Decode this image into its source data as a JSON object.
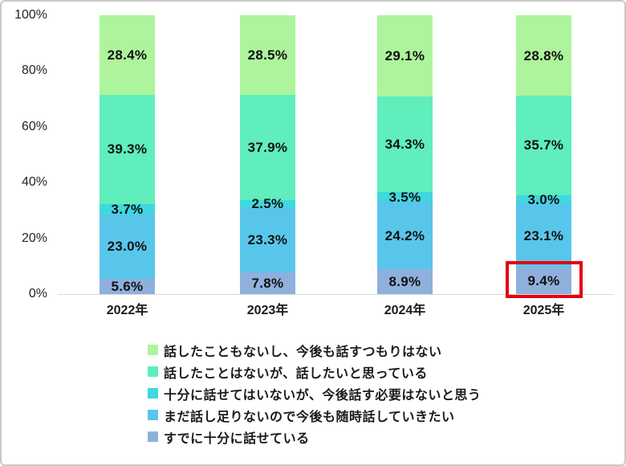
{
  "chart_data": {
    "type": "bar",
    "variant": "stacked-100-percent",
    "title": "",
    "xlabel": "",
    "ylabel": "",
    "categories": [
      "2022年",
      "2023年",
      "2024年",
      "2025年"
    ],
    "series": [
      {
        "name": "すでに十分に話せている",
        "color": "#8fb0dc",
        "values": [
          5.6,
          7.8,
          8.9,
          9.4
        ]
      },
      {
        "name": "まだ話し足りないので今後も随時話していきたい",
        "color": "#58c6eb",
        "values": [
          23.0,
          23.3,
          24.2,
          23.1
        ]
      },
      {
        "name": "十分に話せてはいないが、今後話す必要はないと思う",
        "color": "#3fd8de",
        "values": [
          3.7,
          2.5,
          3.5,
          3.0
        ]
      },
      {
        "name": "話したことはないが、話したいと思っている",
        "color": "#5feebc",
        "values": [
          39.3,
          37.9,
          34.3,
          35.7
        ]
      },
      {
        "name": "話したこともないし、今後も話すつもりはない",
        "color": "#adf49c",
        "values": [
          28.4,
          28.5,
          29.1,
          28.8
        ]
      }
    ],
    "y_ticks": [
      "0%",
      "20%",
      "40%",
      "60%",
      "80%",
      "100%"
    ],
    "ylim": [
      0,
      100
    ],
    "grid": false,
    "legend_position": "bottom",
    "legend_order": "top-series-first",
    "data_label_format": "one-decimal-percent"
  },
  "highlight": {
    "category": "2025年",
    "series": "すでに十分に話せている",
    "value_label": "9.4%",
    "box_color": "#e60012"
  },
  "colors": {
    "background": "#ffffff",
    "frame_border": "#c9c9c9",
    "axis_line": "#d9d9d9",
    "data_label": "#111111",
    "tick_label": "#262626"
  }
}
